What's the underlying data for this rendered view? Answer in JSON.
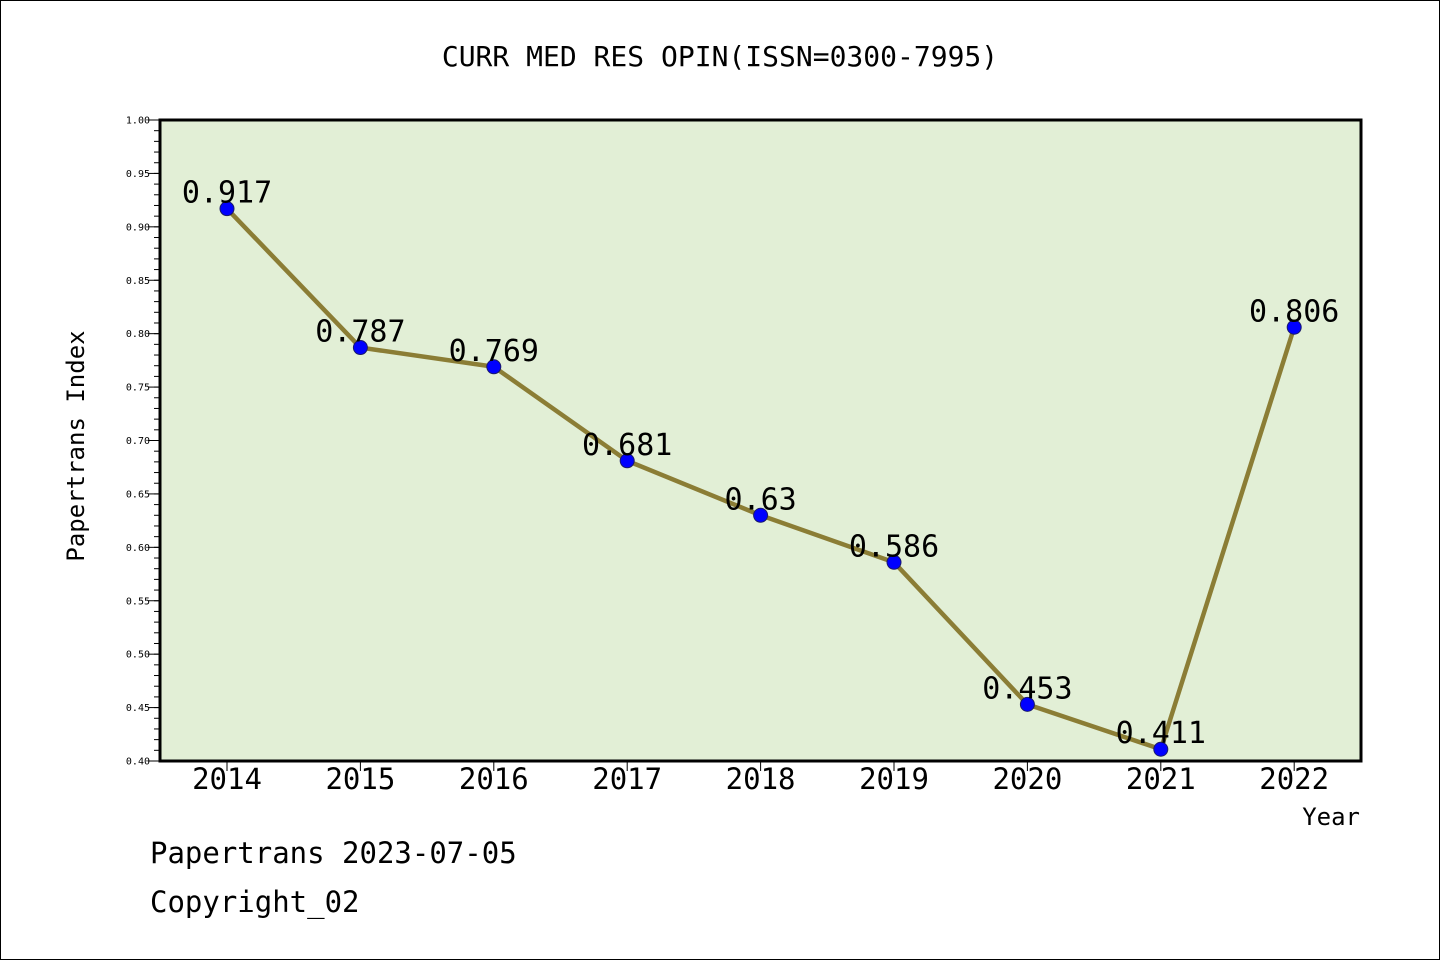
{
  "chart_data": {
    "type": "line",
    "title": "CURR MED RES OPIN(ISSN=0300-7995)",
    "xlabel": "Year",
    "ylabel": "Papertrans Index",
    "x": [
      "2014",
      "2015",
      "2016",
      "2017",
      "2018",
      "2019",
      "2020",
      "2021",
      "2022"
    ],
    "values": [
      0.917,
      0.787,
      0.769,
      0.681,
      0.63,
      0.586,
      0.453,
      0.411,
      0.806
    ],
    "data_labels": [
      "0.917",
      "0.787",
      "0.769",
      "0.681",
      "0.63",
      "0.586",
      "0.453",
      "0.411",
      "0.806"
    ],
    "ylim": [
      0.4,
      1.0
    ],
    "yticks": [
      "0.40",
      "0.45",
      "0.50",
      "0.55",
      "0.60",
      "0.65",
      "0.70",
      "0.75",
      "0.80",
      "0.85",
      "0.90",
      "0.95",
      "1.00"
    ],
    "grid": false,
    "legend": "none",
    "colors": {
      "plot_background": "#e2efd6",
      "line": "#8b7d35",
      "marker": "#0000ff",
      "axes": "#000000"
    }
  },
  "footer": {
    "date_text": "Papertrans 2023-07-05",
    "copyright_text": "Copyright_02"
  }
}
